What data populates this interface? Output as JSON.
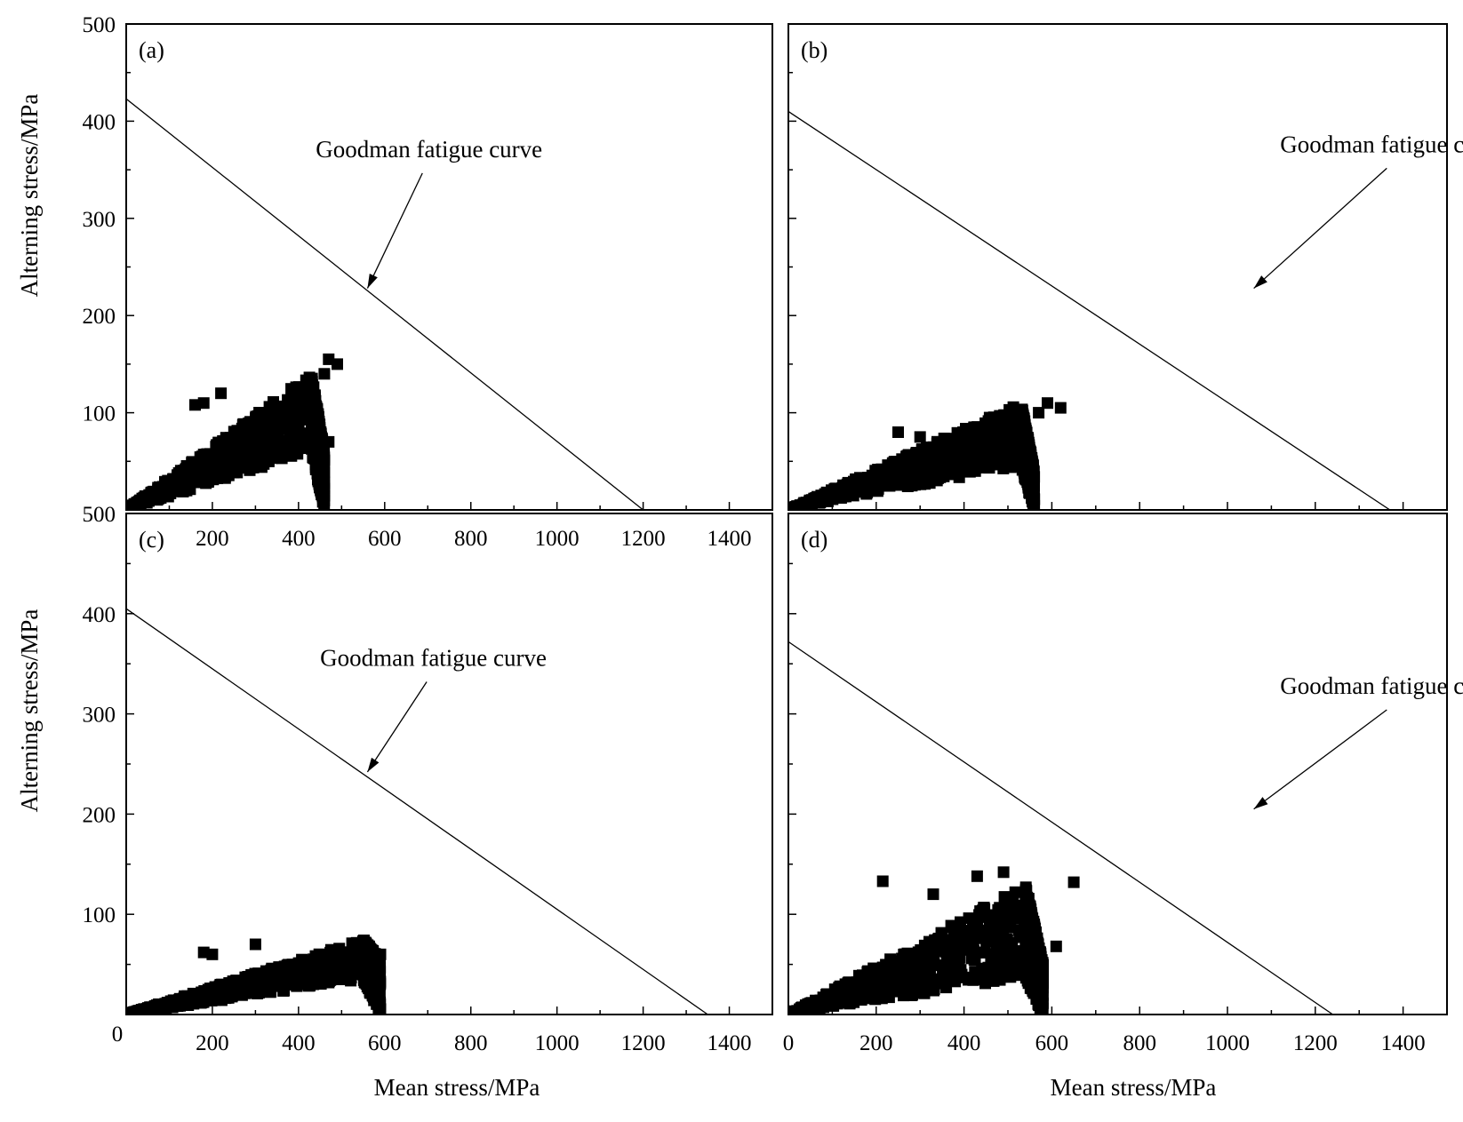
{
  "figure": {
    "y_axis_label": "Alterning stress/MPa",
    "x_axis_label": "Mean stress/MPa"
  },
  "chart_data": [
    {
      "panel_label": "(a)",
      "type": "scatter",
      "xlabel": "",
      "ylabel": "Alterning stress/MPa",
      "xlim": [
        0,
        1500
      ],
      "ylim": [
        0,
        500
      ],
      "x_ticks": [
        "200",
        "400",
        "600",
        "800",
        "1000",
        "1200",
        "1400"
      ],
      "y_ticks": [
        "100",
        "200",
        "300",
        "400",
        "500"
      ],
      "annotation": {
        "text": "Goodman fatigue curve",
        "text_at": [
          440,
          363
        ],
        "arrow_tip": [
          560,
          228
        ]
      },
      "goodman_line": {
        "x": [
          0,
          1200
        ],
        "y": [
          423,
          0
        ]
      },
      "scatter_bands": [
        {
          "x": [
            0,
            430
          ],
          "y_low": [
            0,
            60
          ],
          "y_high": [
            0,
            140
          ]
        },
        {
          "x": [
            430,
            460
          ],
          "y_low": [
            60,
            0
          ],
          "y_high": [
            140,
            60
          ]
        }
      ],
      "outliers": [
        [
          470,
          155
        ],
        [
          490,
          150
        ],
        [
          460,
          140
        ],
        [
          180,
          110
        ],
        [
          160,
          108
        ],
        [
          220,
          120
        ],
        [
          470,
          70
        ]
      ]
    },
    {
      "panel_label": "(b)",
      "type": "scatter",
      "xlabel": "",
      "ylabel": "",
      "xlim": [
        0,
        1500
      ],
      "ylim": [
        0,
        500
      ],
      "x_ticks": [],
      "y_ticks": [],
      "annotation": {
        "text": "Goodman fatigue curve",
        "text_at": [
          1120,
          368
        ],
        "arrow_tip": [
          1060,
          228
        ]
      },
      "goodman_line": {
        "x": [
          0,
          1370
        ],
        "y": [
          410,
          0
        ]
      },
      "scatter_bands": [
        {
          "x": [
            0,
            530
          ],
          "y_low": [
            0,
            45
          ],
          "y_high": [
            0,
            110
          ]
        },
        {
          "x": [
            530,
            560
          ],
          "y_low": [
            45,
            0
          ],
          "y_high": [
            110,
            40
          ]
        }
      ],
      "outliers": [
        [
          590,
          110
        ],
        [
          620,
          105
        ],
        [
          570,
          100
        ],
        [
          250,
          80
        ],
        [
          300,
          75
        ]
      ]
    },
    {
      "panel_label": "(c)",
      "type": "scatter",
      "xlabel": "Mean stress/MPa",
      "ylabel": "Alterning stress/MPa",
      "xlim": [
        0,
        1500
      ],
      "ylim": [
        0,
        500
      ],
      "x_ticks": [
        "200",
        "400",
        "600",
        "800",
        "1000",
        "1200",
        "1400"
      ],
      "y_ticks": [
        "100",
        "200",
        "300",
        "400",
        "500"
      ],
      "origin_label": "0",
      "annotation": {
        "text": "Goodman fatigue curve",
        "text_at": [
          450,
          348
        ],
        "arrow_tip": [
          560,
          242
        ]
      },
      "goodman_line": {
        "x": [
          0,
          1350
        ],
        "y": [
          405,
          0
        ]
      },
      "scatter_bands": [
        {
          "x": [
            0,
            550
          ],
          "y_low": [
            0,
            35
          ],
          "y_high": [
            0,
            75
          ]
        },
        {
          "x": [
            550,
            590
          ],
          "y_low": [
            35,
            0
          ],
          "y_high": [
            75,
            55
          ]
        }
      ],
      "outliers": [
        [
          180,
          62
        ],
        [
          200,
          60
        ],
        [
          300,
          70
        ],
        [
          590,
          60
        ]
      ]
    },
    {
      "panel_label": "(d)",
      "type": "scatter",
      "xlabel": "Mean stress/MPa",
      "ylabel": "",
      "xlim": [
        0,
        1500
      ],
      "ylim": [
        0,
        500
      ],
      "x_ticks": [
        "0",
        "200",
        "400",
        "600",
        "800",
        "1000",
        "1200",
        "1400"
      ],
      "y_ticks": [],
      "annotation": {
        "text": "Goodman fatigue curve",
        "text_at": [
          1120,
          320
        ],
        "arrow_tip": [
          1060,
          205
        ]
      },
      "goodman_line": {
        "x": [
          0,
          1240
        ],
        "y": [
          372,
          0
        ]
      },
      "scatter_bands": [
        {
          "x": [
            0,
            540
          ],
          "y_low": [
            0,
            35
          ],
          "y_high": [
            0,
            130
          ]
        },
        {
          "x": [
            540,
            580
          ],
          "y_low": [
            35,
            0
          ],
          "y_high": [
            130,
            50
          ]
        }
      ],
      "outliers": [
        [
          215,
          133
        ],
        [
          650,
          132
        ],
        [
          610,
          68
        ],
        [
          330,
          120
        ],
        [
          430,
          138
        ],
        [
          490,
          142
        ],
        [
          560,
          90
        ]
      ]
    }
  ]
}
